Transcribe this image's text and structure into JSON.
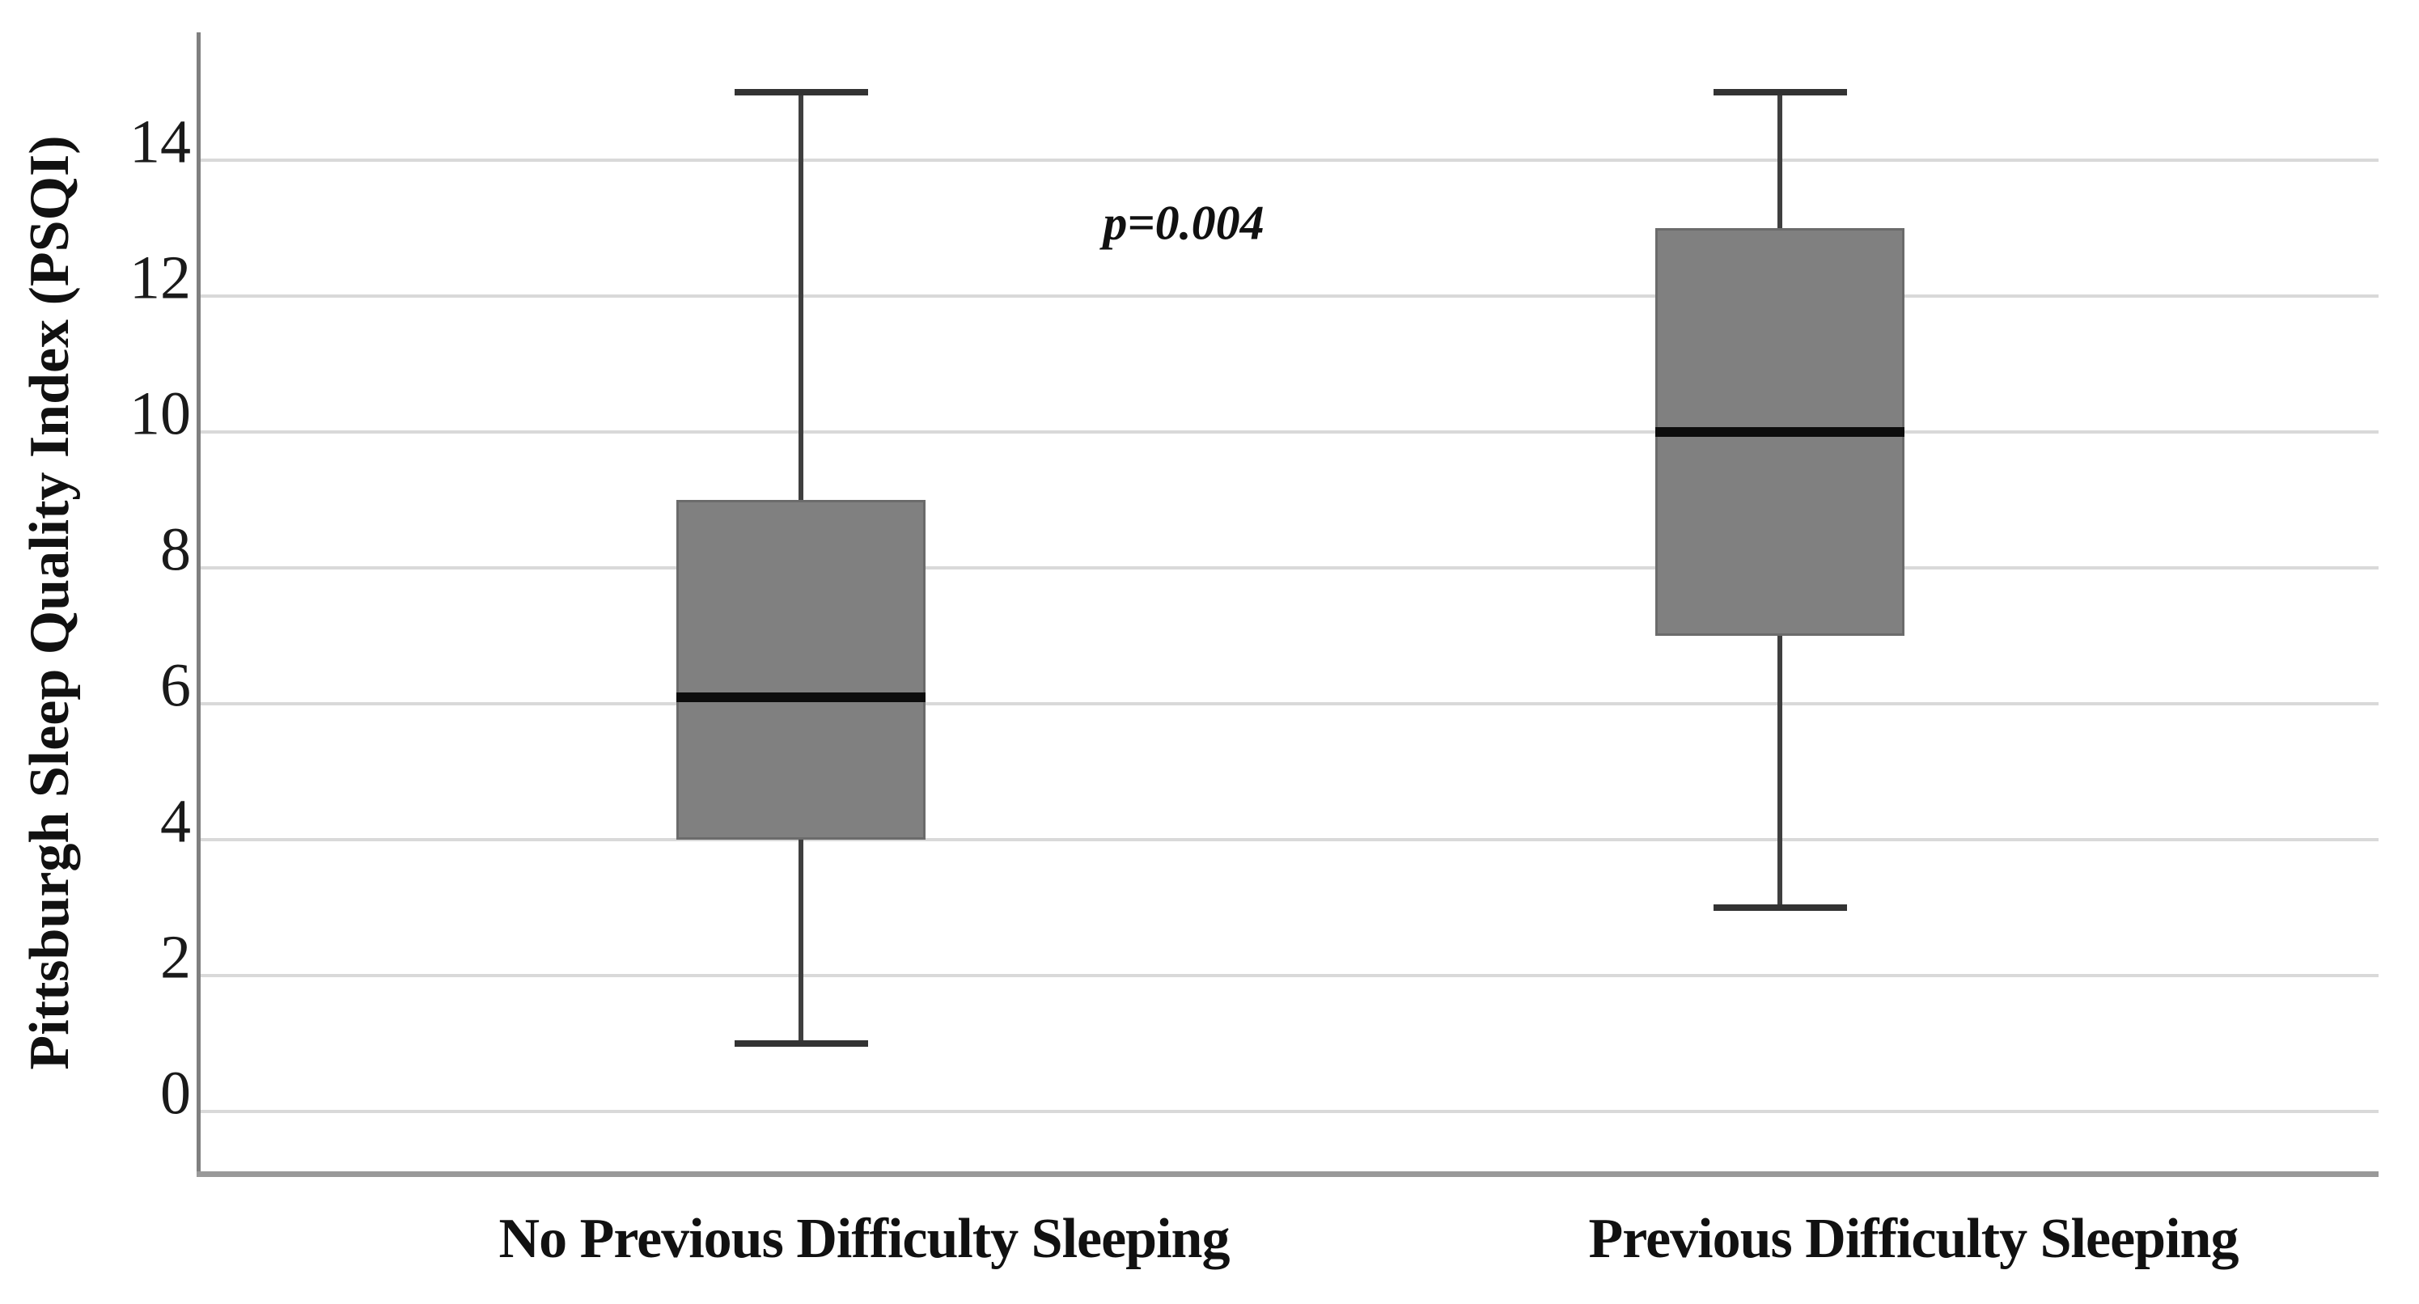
{
  "y_axis": {
    "title": "Pittsburgh Sleep Quality Index (PSQI)",
    "tick_values": [
      0,
      2,
      4,
      6,
      8,
      10,
      12,
      14
    ]
  },
  "annotation": {
    "text": "p=0.004"
  },
  "chart_data": {
    "type": "box",
    "title": "",
    "xlabel": "",
    "ylabel": "Pittsburgh Sleep Quality Index (PSQI)",
    "ylim": [
      0,
      16
    ],
    "yticks": [
      0,
      2,
      4,
      6,
      8,
      10,
      12,
      14
    ],
    "grid": true,
    "legend": "none",
    "categories": [
      "No Previous Difficulty Sleeping",
      "Previous Difficulty Sleeping"
    ],
    "series": [
      {
        "name": "No Previous Difficulty Sleeping",
        "whisker_low": 1,
        "q1": 4,
        "median": 6.1,
        "q3": 9,
        "whisker_high": 15
      },
      {
        "name": "Previous Difficulty Sleeping",
        "whisker_low": 3,
        "q1": 7,
        "median": 10,
        "q3": 13,
        "whisker_high": 15
      }
    ],
    "annotations": [
      {
        "text": "p=0.004",
        "y_value": 13.1
      }
    ],
    "colors": {
      "box_fill": "#808080",
      "box_border": "#6b6b6b",
      "median": "#0d0d0d",
      "whisker": "#3f3f3f",
      "gridline": "#d9d9d9",
      "axis_line": "#808080",
      "frame_line": "#999999",
      "text": "#1a1a1a",
      "background": "#ffffff"
    }
  }
}
